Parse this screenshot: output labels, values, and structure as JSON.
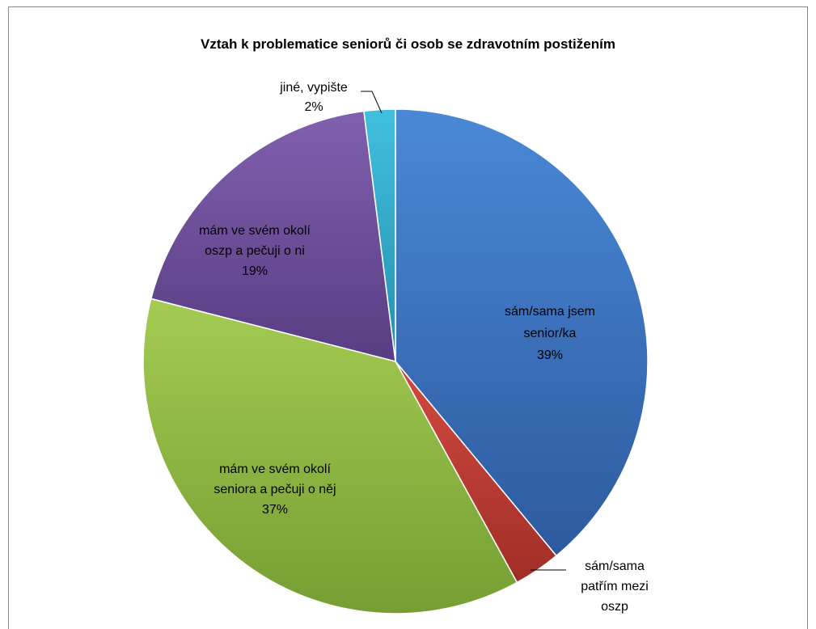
{
  "chart_data": {
    "type": "pie",
    "title": "Vztah k problematice seniorů či osob se zdravotním postižením",
    "legend": "none",
    "slices": [
      {
        "name": "sám/sama jsem senior/ka",
        "value": 39,
        "label_lines": [
          "sám/sama jsem",
          "senior/ka",
          "39%"
        ],
        "color": "#3b6fbf",
        "color_light": "#4a88d6",
        "color_dark": "#2d5a9e"
      },
      {
        "name": "sám/sama patřím mezi oszp",
        "value": 3,
        "label_lines": [
          "sám/sama",
          "patřím mezi",
          "oszp"
        ],
        "color": "#c0392f",
        "color_light": "#d24a40",
        "color_dark": "#a02e27"
      },
      {
        "name": "mám ve svém okolí seniora a pečuji o něj",
        "value": 37,
        "label_lines": [
          "mám ve svém okolí",
          "seniora a pečuji o něj",
          "37%"
        ],
        "color": "#8db73f",
        "color_light": "#a4cb52",
        "color_dark": "#769e33"
      },
      {
        "name": "mám ve svém okolí oszp a pečuji o ni",
        "value": 19,
        "label_lines": [
          "mám ve svém okolí",
          "oszp a pečuji o ni",
          "19%"
        ],
        "color": "#6b4c9a",
        "color_light": "#8160ae",
        "color_dark": "#573d82"
      },
      {
        "name": "jiné, vypište",
        "value": 2,
        "label_lines": [
          "jiné, vypište",
          "2%"
        ],
        "color": "#2fa8c7",
        "color_light": "#41bfde",
        "color_dark": "#2590ad"
      }
    ]
  }
}
